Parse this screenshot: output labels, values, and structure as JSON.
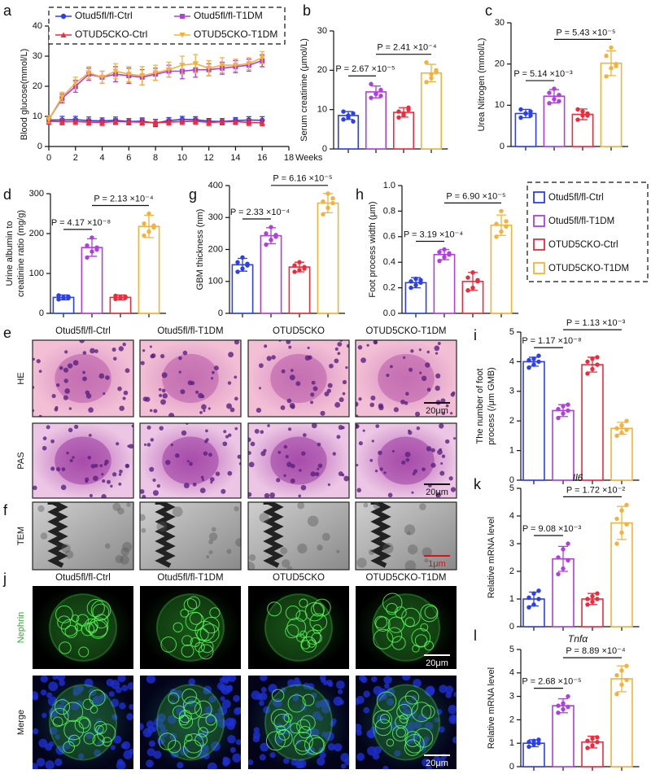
{
  "chart_data": [
    {
      "type": "line",
      "panel": "a",
      "ylabel": "Blood glucose(mmol/L)",
      "xlabel": "Weeks",
      "legend": "top",
      "x": [
        0,
        1,
        2,
        3,
        4,
        5,
        6,
        7,
        8,
        9,
        10,
        11,
        12,
        13,
        14,
        15,
        16
      ],
      "xlim": [
        0,
        18
      ],
      "xticks": [
        0,
        2,
        4,
        6,
        8,
        10,
        12,
        14,
        16,
        18
      ],
      "ylim": [
        0,
        40
      ],
      "yticks": [
        0,
        10,
        20,
        30,
        40
      ],
      "series": [
        {
          "name": "Otud5fl/fl-Ctrl",
          "color": "#2b3ff0",
          "values": [
            8.8,
            8.8,
            8.9,
            8.6,
            8.5,
            8.7,
            8.3,
            8.4,
            7.8,
            8.6,
            9.0,
            8.9,
            8.4,
            8.3,
            8.6,
            8.8,
            8.7
          ],
          "errors": [
            1.2,
            1.2,
            1.1,
            1.2,
            1.0,
            1.1,
            1.0,
            1.1,
            1.2,
            1.0,
            1.0,
            1.0,
            0.9,
            1.0,
            1.0,
            1.1,
            1.2
          ]
        },
        {
          "name": "Otud5fl/fl-T1DM",
          "color": "#b03ee0",
          "values": [
            9,
            16,
            20,
            24,
            23,
            24,
            23.5,
            23,
            24,
            25,
            25,
            25.5,
            25.5,
            26,
            26.5,
            27,
            28.5
          ],
          "errors": [
            1.2,
            1.5,
            2,
            2,
            2,
            2.5,
            2.5,
            2.5,
            2,
            2,
            2.5,
            2.5,
            2,
            2,
            2,
            2,
            2
          ]
        },
        {
          "name": "OTUD5CKO-Ctrl",
          "color": "#ee2b3b",
          "values": [
            8.4,
            8.2,
            8.3,
            8.1,
            8.0,
            8.3,
            8.2,
            8.1,
            7.9,
            8.1,
            8.3,
            8.4,
            8.0,
            8.2,
            8.3,
            8.0,
            7.9
          ],
          "errors": [
            1.0,
            1.0,
            1.0,
            1.0,
            1.0,
            1.0,
            1.0,
            1.0,
            1.0,
            1.0,
            1.0,
            1.0,
            1.0,
            1.0,
            1.0,
            1.0,
            1.0
          ]
        },
        {
          "name": "OTUD5CKO-T1DM",
          "color": "#f5b23a",
          "values": [
            9,
            16.5,
            21,
            24.5,
            23,
            25,
            24,
            23.5,
            24.5,
            25.5,
            27,
            27.5,
            26,
            27,
            27,
            27.5,
            29.5
          ],
          "errors": [
            1.2,
            1.5,
            2,
            2,
            2,
            2.5,
            2.5,
            3,
            2.5,
            2.5,
            3,
            3,
            2.5,
            2.5,
            2,
            2,
            2
          ]
        }
      ]
    },
    {
      "type": "bar",
      "panel": "b",
      "ylabel": "Serum creatinine (μmol/L)",
      "ylim": [
        0,
        30
      ],
      "yticks": [
        0,
        10,
        20,
        30
      ],
      "categories": [
        null,
        null,
        null,
        null
      ],
      "colors": [
        "#2b3ff0",
        "#b03ee0",
        "#ee2b3b",
        "#f5b23a"
      ],
      "values": [
        8.5,
        14.5,
        9.3,
        19.3
      ],
      "errors": [
        1,
        1.5,
        1.2,
        2.2
      ],
      "points": [
        [
          7.5,
          8,
          9,
          9.5,
          8.5,
          7
        ],
        [
          13,
          14,
          15,
          16.5,
          14,
          13.5
        ],
        [
          8,
          9,
          10,
          9.5,
          8.5,
          10.5
        ],
        [
          17,
          19,
          20,
          22,
          18,
          19.5
        ]
      ],
      "annotations": [
        "P = 2.67 ×10⁻⁵",
        "P = 2.41 ×10⁻⁴"
      ]
    },
    {
      "type": "bar",
      "panel": "c",
      "ylabel": "Urea Nitrogen (mmol/L)",
      "ylim": [
        0,
        30
      ],
      "yticks": [
        0,
        10,
        20,
        30
      ],
      "categories": [
        null,
        null,
        null,
        null
      ],
      "colors": [
        "#2b3ff0",
        "#b03ee0",
        "#ee2b3b",
        "#f5b23a"
      ],
      "values": [
        8,
        12.2,
        7.8,
        20.2
      ],
      "errors": [
        1,
        1.6,
        1.3,
        3
      ],
      "points": [
        [
          7,
          8,
          8.5,
          9,
          8,
          7.5
        ],
        [
          10.5,
          11.5,
          12.5,
          13,
          14,
          11
        ],
        [
          6.5,
          7.5,
          8,
          9,
          8.5,
          7.5
        ],
        [
          17,
          19,
          20,
          22,
          24,
          19.5
        ]
      ],
      "annotations": [
        "P = 5.14 ×10⁻³",
        "P = 5.43 ×10⁻⁵"
      ]
    },
    {
      "type": "bar",
      "panel": "d",
      "ylabel": [
        "Urine albumin to",
        "creatinine ratio (mg/g)"
      ],
      "ylim": [
        0,
        300
      ],
      "yticks": [
        0,
        100,
        200,
        300
      ],
      "categories": [
        null,
        null,
        null,
        null
      ],
      "colors": [
        "#2b3ff0",
        "#b03ee0",
        "#ee2b3b",
        "#f5b23a"
      ],
      "values": [
        40,
        165,
        40,
        218
      ],
      "errors": [
        6,
        22,
        6,
        28
      ],
      "points": [
        [
          35,
          38,
          42,
          45,
          40,
          38
        ],
        [
          140,
          155,
          165,
          170,
          190,
          160
        ],
        [
          36,
          38,
          42,
          44,
          40,
          39
        ],
        [
          195,
          205,
          215,
          225,
          250,
          220
        ]
      ],
      "annotations": [
        "P = 4.17 ×10⁻⁸",
        "P = 2.13 ×10⁻⁴"
      ]
    },
    {
      "type": "bar",
      "panel": "g",
      "ylabel": "GBM thickness (nm)",
      "ylim": [
        0,
        400
      ],
      "yticks": [
        0,
        100,
        200,
        300,
        400
      ],
      "categories": [
        null,
        null,
        null,
        null
      ],
      "colors": [
        "#2b3ff0",
        "#b03ee0",
        "#ee2b3b",
        "#f5b23a"
      ],
      "values": [
        152,
        243,
        145,
        345
      ],
      "errors": [
        20,
        25,
        15,
        30
      ],
      "points": [
        [
          130,
          140,
          150,
          160,
          175,
          155
        ],
        [
          215,
          230,
          240,
          250,
          270,
          245
        ],
        [
          130,
          135,
          140,
          150,
          160,
          145
        ],
        [
          310,
          330,
          345,
          350,
          375,
          360
        ]
      ],
      "annotations": [
        "P = 2.33 ×10⁻⁴",
        "P = 6.16 ×10⁻⁵"
      ]
    },
    {
      "type": "bar",
      "panel": "h",
      "ylabel": "Foot process width (μm)",
      "ylim": [
        0,
        1
      ],
      "yticks": [
        {
          "value": 0,
          "label": "0.0"
        },
        0.2,
        0.4,
        0.6,
        0.8,
        {
          "value": 1,
          "label": "1.0"
        }
      ],
      "categories": [
        null,
        null,
        null,
        null
      ],
      "colors": [
        "#2b3ff0",
        "#b03ee0",
        "#ee2b3b",
        "#f5b23a"
      ],
      "values": [
        0.24,
        0.46,
        0.25,
        0.69
      ],
      "errors": [
        0.04,
        0.04,
        0.07,
        0.08
      ],
      "points": [
        [
          0.2,
          0.22,
          0.24,
          0.25,
          0.27,
          0.26
        ],
        [
          0.41,
          0.44,
          0.46,
          0.48,
          0.5,
          0.47
        ],
        [
          0.18,
          0.2,
          0.25,
          0.28,
          0.32,
          0.26
        ],
        [
          0.6,
          0.64,
          0.68,
          0.7,
          0.8,
          0.72
        ]
      ],
      "annotations": [
        "P = 3.19 ×10⁻⁴",
        "P = 6.90 ×10⁻⁵"
      ]
    },
    {
      "type": "bar",
      "panel": "i",
      "ylabel": [
        "The number of foot",
        "process (/μm GMB)"
      ],
      "ylim": [
        0,
        5
      ],
      "yticks": [
        0,
        1,
        2,
        3,
        4,
        5
      ],
      "categories": [
        null,
        null,
        null,
        null
      ],
      "colors": [
        "#2b3ff0",
        "#b03ee0",
        "#ee2b3b",
        "#f5b23a"
      ],
      "values": [
        4.0,
        2.35,
        3.9,
        1.75
      ],
      "errors": [
        0.15,
        0.2,
        0.25,
        0.2
      ],
      "points": [
        [
          3.8,
          3.9,
          4.0,
          4.05,
          4.1,
          4.2
        ],
        [
          2.1,
          2.25,
          2.35,
          2.4,
          2.5,
          2.55
        ],
        [
          3.6,
          3.75,
          3.9,
          4.0,
          4.1,
          4.15
        ],
        [
          1.5,
          1.6,
          1.7,
          1.75,
          1.85,
          2.0
        ]
      ],
      "annotations": [
        "P = 1.17 ×10⁻⁸",
        "P = 1.13 ×10⁻³"
      ]
    },
    {
      "type": "bar",
      "panel": "k",
      "title": "Il6",
      "ylabel": "Relative mRNA level",
      "ylim": [
        0,
        5
      ],
      "yticks": [
        0,
        1,
        2,
        3,
        4,
        5
      ],
      "categories": [
        null,
        null,
        null,
        null
      ],
      "colors": [
        "#2b3ff0",
        "#b03ee0",
        "#ee2b3b",
        "#f5b23a"
      ],
      "values": [
        1.0,
        2.45,
        1.0,
        3.75
      ],
      "errors": [
        0.25,
        0.45,
        0.2,
        0.6
      ],
      "points": [
        [
          0.7,
          0.8,
          1.0,
          1.05,
          1.2,
          1.3
        ],
        [
          1.9,
          2.1,
          2.4,
          2.5,
          2.8,
          3.0
        ],
        [
          0.8,
          0.9,
          1.0,
          1.0,
          1.1,
          1.2
        ],
        [
          3.0,
          3.4,
          3.7,
          3.9,
          4.2,
          4.4
        ]
      ],
      "annotations": [
        "P = 9.08 ×10⁻³",
        "P = 1.72 ×10⁻²"
      ]
    },
    {
      "type": "bar",
      "panel": "l",
      "title": "Tnfα",
      "ylabel": "Relative mRNA level",
      "ylim": [
        0,
        5
      ],
      "yticks": [
        0,
        1,
        2,
        3,
        4,
        5
      ],
      "categories": [
        null,
        null,
        null,
        null
      ],
      "colors": [
        "#2b3ff0",
        "#b03ee0",
        "#ee2b3b",
        "#f5b23a"
      ],
      "values": [
        1.0,
        2.6,
        1.05,
        3.75
      ],
      "errors": [
        0.15,
        0.3,
        0.25,
        0.55
      ],
      "points": [
        [
          0.85,
          0.95,
          1.0,
          1.05,
          1.1,
          1.15
        ],
        [
          2.3,
          2.45,
          2.55,
          2.6,
          2.7,
          3.0
        ],
        [
          0.8,
          0.9,
          1.05,
          1.1,
          1.2,
          1.25
        ],
        [
          3.1,
          3.5,
          3.7,
          3.9,
          4.1,
          4.3
        ]
      ],
      "annotations": [
        "P = 2.68 ×10⁻⁵",
        "P = 8.89 ×10⁻⁴"
      ]
    }
  ],
  "group_legend": {
    "entries": [
      {
        "name": "Otud5fl/fl-Ctrl",
        "color": "#2b3ff0"
      },
      {
        "name": "Otud5fl/fl-T1DM",
        "color": "#b03ee0"
      },
      {
        "name": "OTUD5CKO-Ctrl",
        "color": "#ee2b3b"
      },
      {
        "name": "OTUD5CKO-T1DM",
        "color": "#f5b23a"
      }
    ]
  },
  "image_panels": [
    {
      "panel": "e",
      "columns": [
        "Otud5fl/fl-Ctrl",
        "Otud5fl/fl-T1DM",
        "OTUD5CKO",
        "OTUD5CKO-T1DM"
      ],
      "rows": [
        "HE",
        "PAS"
      ],
      "scale_bars": [
        "20μm",
        "20μm"
      ]
    },
    {
      "panel": "f",
      "rows": [
        "TEM"
      ],
      "scale_bars": [
        "1μm"
      ]
    },
    {
      "panel": "j",
      "columns": [
        "Otud5fl/fl-Ctrl",
        "Otud5fl/fl-T1DM",
        "OTUD5CKO",
        "OTUD5CKO-T1DM"
      ],
      "rows": [
        "Nephrin",
        "Merge"
      ],
      "scale_bars": [
        "20μm",
        "20μm"
      ]
    }
  ]
}
